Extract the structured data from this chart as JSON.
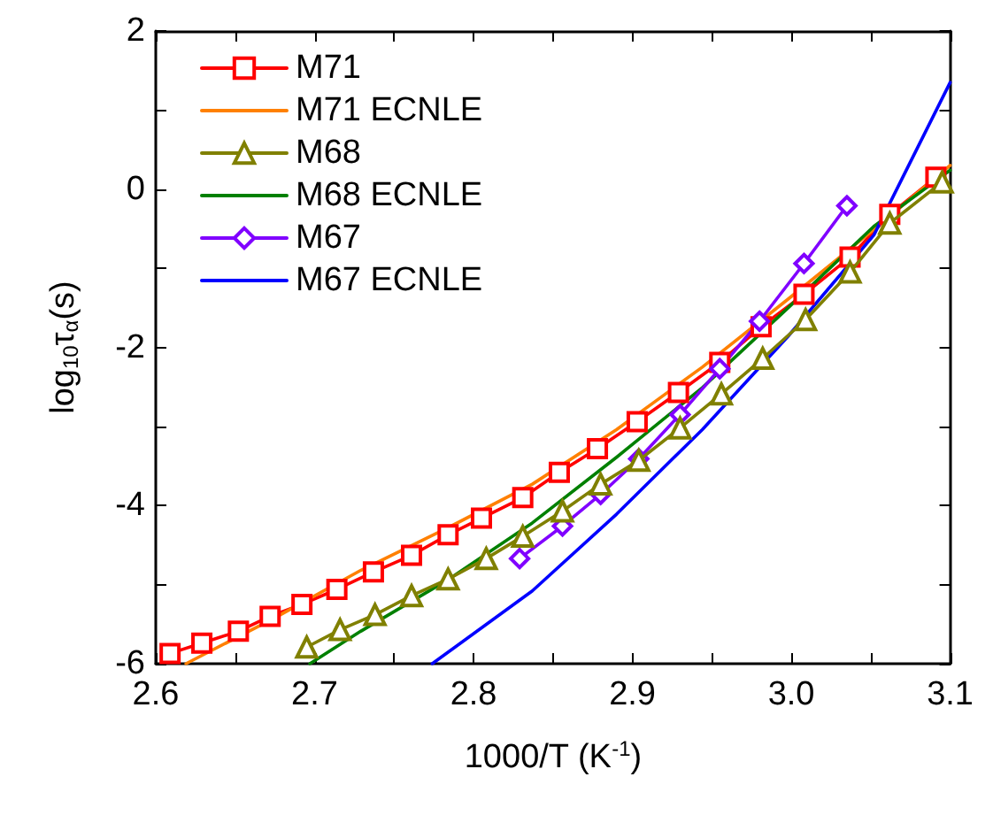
{
  "chart_data": {
    "type": "line",
    "xlabel": "1000/T (K$^{-1}$)",
    "ylabel": "log$_{10}$τ$_{α}$(s)",
    "xlim": [
      2.6,
      3.1
    ],
    "ylim": [
      -6,
      2
    ],
    "xticks": [
      2.6,
      {
        "value": 2.65,
        "label": null
      },
      2.7,
      {
        "value": 2.75,
        "label": null
      },
      2.8,
      {
        "value": 2.85,
        "label": null
      },
      2.9,
      {
        "value": 2.95,
        "label": null
      },
      {
        "value": 3.0,
        "label": "3.0"
      },
      {
        "value": 3.05,
        "label": null
      },
      3.1
    ],
    "yticks": [
      -6,
      {
        "value": -5,
        "label": null
      },
      -4,
      {
        "value": -3,
        "label": null
      },
      -2,
      {
        "value": -1,
        "label": null
      },
      0,
      {
        "value": 1,
        "label": null
      },
      2
    ],
    "grid": false,
    "legend": "top left",
    "line_style": "solid",
    "series": [
      {
        "name": "M71",
        "color": "#ff0000",
        "marker": "square",
        "x": [
          2.609,
          2.629,
          2.652,
          2.672,
          2.692,
          2.714,
          2.737,
          2.761,
          2.784,
          2.805,
          2.831,
          2.854,
          2.878,
          2.903,
          2.929,
          2.955,
          2.981,
          3.008,
          3.037,
          3.062,
          3.091
        ],
        "values": [
          -5.87,
          -5.74,
          -5.59,
          -5.4,
          -5.25,
          -5.06,
          -4.84,
          -4.63,
          -4.37,
          -4.16,
          -3.9,
          -3.58,
          -3.28,
          -2.94,
          -2.57,
          -2.19,
          -1.74,
          -1.33,
          -0.86,
          -0.32,
          0.15
        ]
      },
      {
        "name": "M71 ECNLE",
        "color": "#ff8000",
        "marker": "none",
        "x": [
          2.619,
          2.675,
          2.729,
          2.783,
          2.837,
          2.89,
          2.944,
          2.998,
          3.052,
          3.1
        ],
        "values": [
          -6,
          -5.42,
          -4.82,
          -4.29,
          -3.73,
          -3.04,
          -2.25,
          -1.39,
          -0.51,
          0.3
        ]
      },
      {
        "name": "M68",
        "color": "#808000",
        "marker": "triangle",
        "x": [
          2.695,
          2.716,
          2.738,
          2.761,
          2.784,
          2.808,
          2.831,
          2.856,
          2.88,
          2.904,
          2.93,
          2.956,
          2.982,
          3.009,
          3.037,
          3.062,
          3.095
        ],
        "values": [
          -5.79,
          -5.57,
          -5.38,
          -5.14,
          -4.93,
          -4.67,
          -4.39,
          -4.07,
          -3.73,
          -3.43,
          -3.02,
          -2.59,
          -2.14,
          -1.65,
          -1.05,
          -0.43,
          0.09
        ]
      },
      {
        "name": "M68 ECNLE",
        "color": "#008000",
        "marker": "none",
        "x": [
          2.697,
          2.729,
          2.783,
          2.837,
          2.89,
          2.944,
          2.998,
          3.052,
          3.1
        ],
        "values": [
          -6,
          -5.59,
          -4.95,
          -4.22,
          -3.39,
          -2.51,
          -1.5,
          -0.47,
          0.24
        ]
      },
      {
        "name": "M67",
        "color": "#8000ff",
        "marker": "diamond",
        "x": [
          2.829,
          2.856,
          2.88,
          2.904,
          2.93,
          2.955,
          2.98,
          3.008,
          3.035
        ],
        "values": [
          -4.67,
          -4.26,
          -3.86,
          -3.41,
          -2.85,
          -2.27,
          -1.67,
          -0.94,
          -0.21
        ]
      },
      {
        "name": "M67 ECNLE",
        "color": "#0000ff",
        "marker": "none",
        "x": [
          2.774,
          2.837,
          2.89,
          2.944,
          2.998,
          3.052,
          3.1
        ],
        "values": [
          -6,
          -5.08,
          -4.11,
          -3.04,
          -1.86,
          -0.58,
          1.35
        ]
      }
    ]
  }
}
